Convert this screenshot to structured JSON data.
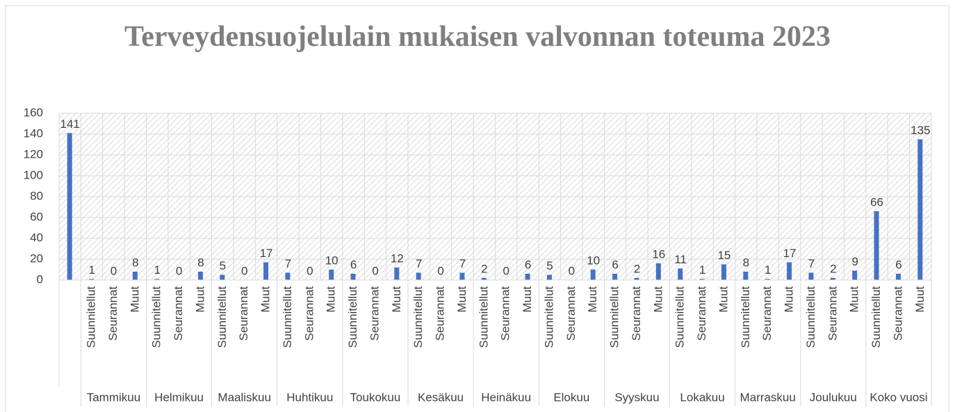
{
  "chart_data": {
    "type": "bar",
    "title": "Terveydensuojelulain mukaisen valvonnan toteuma 2023",
    "categories": [
      null,
      "Suunnitellut",
      "Seurannat",
      "Muut",
      "Suunnitellut",
      "Seurannat",
      "Muut",
      "Suunnitellut",
      "Seurannat",
      "Muut",
      "Suunnitellut",
      "Seurannat",
      "Muut",
      "Suunnitellut",
      "Seurannat",
      "Muut",
      "Suunnitellut",
      "Seurannat",
      "Muut",
      "Suunnitellut",
      "Seurannat",
      "Muut",
      "Suunnitellut",
      "Seurannat",
      "Muut",
      "Suunnitellut",
      "Seurannat",
      "Muut",
      "Suunnitellut",
      "Seurannat",
      "Muut",
      "Suunnitellut",
      "Seurannat",
      "Muut",
      "Suunnitellut",
      "Seurannat",
      "Muut",
      "Suunnitellut",
      "Seurannat",
      "Muut"
    ],
    "groups": [
      "Tammikuu",
      "Helmikuu",
      "Maaliskuu",
      "Huhtikuu",
      "Toukokuu",
      "Kesäkuu",
      "Heinäkuu",
      "Elokuu",
      "Syyskuu",
      "Lokakuu",
      "Marraskuu",
      "Joulukuu",
      "Koko vuosi"
    ],
    "values": [
      141,
      1,
      0,
      8,
      1,
      0,
      8,
      5,
      0,
      17,
      7,
      0,
      10,
      6,
      0,
      12,
      7,
      0,
      7,
      2,
      0,
      6,
      5,
      0,
      10,
      6,
      2,
      16,
      11,
      1,
      15,
      8,
      1,
      17,
      7,
      2,
      9,
      66,
      6,
      135
    ],
    "color": "#4472c4",
    "ylim": [
      0,
      160
    ],
    "yticks": [
      0,
      20,
      40,
      60,
      80,
      100,
      120,
      140,
      160
    ],
    "grid": true
  }
}
